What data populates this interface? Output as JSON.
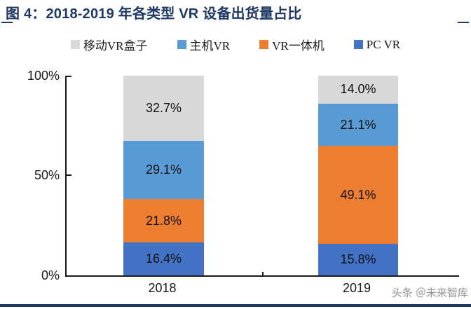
{
  "title": "图 4：2018-2019 年各类型 VR 设备出货量占比",
  "accent_color": "#1f3864",
  "legend": [
    {
      "label": "移动VR盒子",
      "color": "#d9d9d9"
    },
    {
      "label": "主机VR",
      "color": "#5b9bd5"
    },
    {
      "label": "VR一体机",
      "color": "#ed7d31"
    },
    {
      "label": "PC VR",
      "color": "#4472c4"
    }
  ],
  "chart_data": {
    "type": "bar",
    "stacked": true,
    "title": "图 4：2018-2019 年各类型 VR 设备出货量占比",
    "categories": [
      "2018",
      "2019"
    ],
    "series": [
      {
        "name": "PC VR",
        "color": "#4472c4",
        "values": [
          16.4,
          15.8
        ]
      },
      {
        "name": "VR一体机",
        "color": "#ed7d31",
        "values": [
          21.8,
          49.1
        ]
      },
      {
        "name": "主机VR",
        "color": "#5b9bd5",
        "values": [
          29.1,
          21.1
        ]
      },
      {
        "name": "移动VR盒子",
        "color": "#d9d9d9",
        "values": [
          32.7,
          14.0
        ]
      }
    ],
    "stack_order": "bottom-to-top",
    "y_ticks": [
      "0%",
      "50%",
      "100%"
    ],
    "ylim": [
      0,
      100
    ],
    "xlabel": "",
    "ylabel": "",
    "grid": false,
    "legend_position": "top",
    "data_label_format": "one-decimal-percent"
  },
  "watermark": "头条 ＠未来智库"
}
